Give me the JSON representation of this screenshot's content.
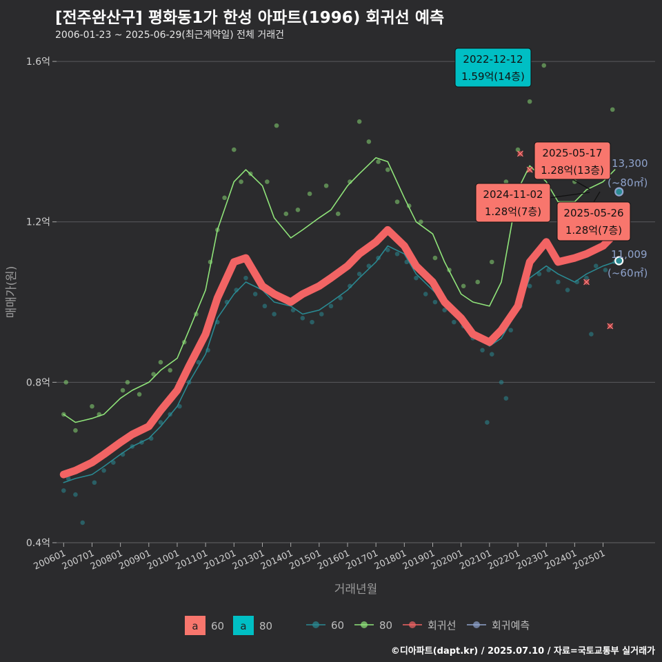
{
  "header": {
    "title": "[전주완산구] 평화동1가 한성 아파트(1996) 회귀선 예측",
    "subtitle": "2006-01-23 ~ 2025-06-29(최근계약일) 전체 거래건"
  },
  "caption": "©디아파트(dapt.kr) / 2025.07.10 / 자료=국토교통부 실거래가",
  "colors": {
    "background": "#2b2b2d",
    "grid": "#5a5a5e",
    "series_60": "#2a8a93",
    "series_80": "#90e57a",
    "regression": "#f26464",
    "forecast": "#8fa3cc",
    "label_60": "#f8766d",
    "label_80": "#00bfc4"
  },
  "chart_data": {
    "type": "line",
    "xlabel": "거래년월",
    "ylabel": "매매가(원)",
    "xlim": [
      "2005-10",
      "2026-11"
    ],
    "ylim": [
      0.4,
      1.65
    ],
    "y_ticks": [
      {
        "value": 0.4,
        "label": "0.4억"
      },
      {
        "value": 0.8,
        "label": "0.8억"
      },
      {
        "value": 1.2,
        "label": "1.2억"
      },
      {
        "value": 1.6,
        "label": "1.6억"
      }
    ],
    "x_ticks": [
      "200601",
      "200701",
      "200801",
      "200901",
      "201001",
      "201101",
      "201201",
      "201301",
      "201401",
      "201501",
      "201601",
      "201701",
      "201801",
      "201901",
      "202001",
      "202101",
      "202201",
      "202301",
      "202401",
      "202501"
    ],
    "series": [
      {
        "name": "60",
        "x": [
          "2006-01",
          "2006-06",
          "2007-01",
          "2007-06",
          "2008-01",
          "2008-06",
          "2009-01",
          "2009-06",
          "2010-01",
          "2010-06",
          "2011-01",
          "2011-06",
          "2012-01",
          "2012-06",
          "2013-01",
          "2013-06",
          "2014-01",
          "2014-06",
          "2015-01",
          "2015-06",
          "2016-01",
          "2016-06",
          "2017-01",
          "2017-06",
          "2018-01",
          "2018-06",
          "2019-01",
          "2019-06",
          "2020-01",
          "2020-06",
          "2021-01",
          "2021-06",
          "2022-01",
          "2022-06",
          "2023-01",
          "2023-06",
          "2024-01",
          "2024-06",
          "2025-01",
          "2025-06"
        ],
        "values": [
          0.55,
          0.56,
          0.57,
          0.59,
          0.62,
          0.64,
          0.66,
          0.69,
          0.74,
          0.8,
          0.87,
          0.96,
          1.02,
          1.05,
          1.03,
          1.0,
          0.99,
          0.97,
          0.98,
          1.0,
          1.03,
          1.06,
          1.1,
          1.14,
          1.12,
          1.07,
          1.03,
          1.0,
          0.97,
          0.93,
          0.89,
          0.91,
          0.98,
          1.06,
          1.09,
          1.07,
          1.05,
          1.07,
          1.09,
          1.1
        ]
      },
      {
        "name": "80",
        "x": [
          "2006-01",
          "2006-06",
          "2007-01",
          "2007-06",
          "2008-01",
          "2008-06",
          "2009-01",
          "2009-06",
          "2010-01",
          "2010-06",
          "2011-01",
          "2011-06",
          "2012-01",
          "2012-06",
          "2013-01",
          "2013-06",
          "2014-01",
          "2014-06",
          "2015-01",
          "2015-06",
          "2016-01",
          "2016-06",
          "2017-01",
          "2017-06",
          "2018-01",
          "2018-06",
          "2019-01",
          "2019-06",
          "2020-01",
          "2020-06",
          "2021-01",
          "2021-06",
          "2022-01",
          "2022-06",
          "2023-01",
          "2023-06",
          "2024-01",
          "2024-06",
          "2025-01",
          "2025-06"
        ],
        "values": [
          0.72,
          0.7,
          0.71,
          0.72,
          0.76,
          0.78,
          0.8,
          0.83,
          0.86,
          0.93,
          1.03,
          1.18,
          1.3,
          1.33,
          1.29,
          1.21,
          1.16,
          1.18,
          1.21,
          1.23,
          1.29,
          1.32,
          1.36,
          1.35,
          1.26,
          1.2,
          1.17,
          1.1,
          1.02,
          1.0,
          0.99,
          1.05,
          1.28,
          1.34,
          1.3,
          1.25,
          1.25,
          1.28,
          1.3,
          1.33
        ]
      },
      {
        "name": "회귀선",
        "x": [
          "2006-01",
          "2006-06",
          "2007-01",
          "2007-06",
          "2008-01",
          "2008-06",
          "2009-01",
          "2009-06",
          "2010-01",
          "2010-06",
          "2011-01",
          "2011-06",
          "2012-01",
          "2012-06",
          "2013-01",
          "2013-06",
          "2014-01",
          "2014-06",
          "2015-01",
          "2015-06",
          "2016-01",
          "2016-06",
          "2017-01",
          "2017-06",
          "2018-01",
          "2018-06",
          "2019-01",
          "2019-06",
          "2020-01",
          "2020-06",
          "2021-01",
          "2021-06",
          "2022-01",
          "2022-06",
          "2023-01",
          "2023-06",
          "2024-01",
          "2024-06",
          "2025-01",
          "2025-06"
        ],
        "values": [
          0.57,
          0.58,
          0.6,
          0.62,
          0.65,
          0.67,
          0.69,
          0.73,
          0.78,
          0.84,
          0.92,
          1.01,
          1.1,
          1.11,
          1.04,
          1.02,
          1.0,
          1.02,
          1.04,
          1.06,
          1.09,
          1.12,
          1.15,
          1.18,
          1.14,
          1.09,
          1.05,
          1.0,
          0.96,
          0.92,
          0.9,
          0.93,
          0.99,
          1.1,
          1.15,
          1.1,
          1.11,
          1.12,
          1.14,
          1.17
        ]
      },
      {
        "name": "회귀예측",
        "x": [
          "2025-06"
        ],
        "values": [
          1.27
        ]
      }
    ],
    "scatter_60": [
      [
        "2006-01",
        0.53
      ],
      [
        "2006-03",
        0.56
      ],
      [
        "2006-06",
        0.52
      ],
      [
        "2006-09",
        0.45
      ],
      [
        "2007-02",
        0.55
      ],
      [
        "2007-06",
        0.58
      ],
      [
        "2007-10",
        0.6
      ],
      [
        "2008-02",
        0.62
      ],
      [
        "2008-06",
        0.64
      ],
      [
        "2008-10",
        0.65
      ],
      [
        "2009-02",
        0.66
      ],
      [
        "2009-06",
        0.7
      ],
      [
        "2009-10",
        0.72
      ],
      [
        "2010-02",
        0.74
      ],
      [
        "2010-06",
        0.8
      ],
      [
        "2010-10",
        0.85
      ],
      [
        "2011-02",
        0.88
      ],
      [
        "2011-06",
        0.95
      ],
      [
        "2011-10",
        1.0
      ],
      [
        "2012-02",
        1.03
      ],
      [
        "2012-06",
        1.06
      ],
      [
        "2012-10",
        1.02
      ],
      [
        "2013-02",
        0.99
      ],
      [
        "2013-06",
        0.97
      ],
      [
        "2013-10",
        1.01
      ],
      [
        "2014-02",
        0.98
      ],
      [
        "2014-06",
        0.96
      ],
      [
        "2014-10",
        0.95
      ],
      [
        "2015-02",
        0.97
      ],
      [
        "2015-06",
        0.99
      ],
      [
        "2015-10",
        1.01
      ],
      [
        "2016-02",
        1.04
      ],
      [
        "2016-06",
        1.07
      ],
      [
        "2016-10",
        1.09
      ],
      [
        "2017-02",
        1.11
      ],
      [
        "2017-06",
        1.13
      ],
      [
        "2017-10",
        1.12
      ],
      [
        "2018-02",
        1.1
      ],
      [
        "2018-06",
        1.06
      ],
      [
        "2018-10",
        1.02
      ],
      [
        "2019-02",
        1.0
      ],
      [
        "2019-06",
        0.98
      ],
      [
        "2019-10",
        0.95
      ],
      [
        "2020-02",
        0.94
      ],
      [
        "2020-06",
        0.91
      ],
      [
        "2020-10",
        0.88
      ],
      [
        "2021-02",
        0.87
      ],
      [
        "2021-06",
        0.8
      ],
      [
        "2021-10",
        0.93
      ],
      [
        "2022-02",
        0.99
      ],
      [
        "2022-06",
        1.04
      ],
      [
        "2022-10",
        1.07
      ],
      [
        "2023-02",
        1.08
      ],
      [
        "2023-06",
        1.05
      ],
      [
        "2023-10",
        1.03
      ],
      [
        "2024-02",
        1.05
      ],
      [
        "2024-06",
        1.06
      ],
      [
        "2024-10",
        1.09
      ],
      [
        "2025-02",
        1.08
      ],
      [
        "2025-06",
        1.1
      ],
      [
        "2020-12",
        0.7
      ],
      [
        "2021-08",
        0.76
      ],
      [
        "2024-08",
        0.92
      ]
    ],
    "scatter_80": [
      [
        "2006-01",
        0.72
      ],
      [
        "2006-02",
        0.8
      ],
      [
        "2006-06",
        0.68
      ],
      [
        "2007-01",
        0.74
      ],
      [
        "2007-04",
        0.72
      ],
      [
        "2008-02",
        0.78
      ],
      [
        "2008-04",
        0.8
      ],
      [
        "2008-09",
        0.77
      ],
      [
        "2009-03",
        0.82
      ],
      [
        "2009-06",
        0.85
      ],
      [
        "2009-10",
        0.83
      ],
      [
        "2010-04",
        0.9
      ],
      [
        "2010-09",
        0.97
      ],
      [
        "2011-03",
        1.1
      ],
      [
        "2011-06",
        1.18
      ],
      [
        "2011-09",
        1.26
      ],
      [
        "2012-01",
        1.38
      ],
      [
        "2012-04",
        1.3
      ],
      [
        "2012-08",
        1.32
      ],
      [
        "2013-03",
        1.3
      ],
      [
        "2013-07",
        1.44
      ],
      [
        "2013-11",
        1.22
      ],
      [
        "2014-04",
        1.23
      ],
      [
        "2014-09",
        1.27
      ],
      [
        "2015-04",
        1.29
      ],
      [
        "2015-09",
        1.22
      ],
      [
        "2016-02",
        1.3
      ],
      [
        "2016-06",
        1.45
      ],
      [
        "2016-10",
        1.4
      ],
      [
        "2017-02",
        1.35
      ],
      [
        "2017-06",
        1.33
      ],
      [
        "2017-10",
        1.25
      ],
      [
        "2018-03",
        1.24
      ],
      [
        "2018-08",
        1.2
      ],
      [
        "2019-02",
        1.11
      ],
      [
        "2019-08",
        1.08
      ],
      [
        "2020-02",
        1.04
      ],
      [
        "2020-08",
        1.05
      ],
      [
        "2021-02",
        1.1
      ],
      [
        "2021-08",
        1.3
      ],
      [
        "2022-01",
        1.38
      ],
      [
        "2022-06",
        1.5
      ],
      [
        "2022-12",
        1.59
      ],
      [
        "2023-06",
        1.36
      ],
      [
        "2024-01",
        1.3
      ],
      [
        "2024-06",
        1.33
      ],
      [
        "2025-02",
        1.32
      ],
      [
        "2025-05",
        1.48
      ]
    ],
    "labels": [
      {
        "date": "2022-12-12",
        "price": "1.59억(14층)",
        "group": "80"
      },
      {
        "date": "2025-05-17",
        "price": "1.28억(13층)",
        "group": "60"
      },
      {
        "date": "2024-11-02",
        "price": "1.28억(7층)",
        "group": "60"
      },
      {
        "date": "2025-05-26",
        "price": "1.28억(7층)",
        "group": "60"
      }
    ],
    "forecasts": [
      {
        "group": "80",
        "value_text": "13,300",
        "area_text": "(~80㎡)"
      },
      {
        "group": "60",
        "value_text": "11,009",
        "area_text": "(~60㎡)"
      }
    ],
    "outliers": [
      [
        "2022-02",
        1.37
      ],
      [
        "2022-06",
        1.33
      ],
      [
        "2024-06",
        1.05
      ],
      [
        "2025-04",
        0.94
      ]
    ],
    "legend": {
      "label_items": [
        {
          "glyph": "a",
          "text": "60",
          "color": "#f8766d"
        },
        {
          "glyph": "a",
          "text": "80",
          "color": "#00bfc4"
        }
      ],
      "line_items": [
        {
          "text": "60",
          "color": "#2a8a93"
        },
        {
          "text": "80",
          "color": "#90e57a"
        },
        {
          "text": "회귀선",
          "color": "#f26464"
        },
        {
          "text": "회귀예측",
          "color": "#8fa3cc"
        }
      ]
    }
  }
}
